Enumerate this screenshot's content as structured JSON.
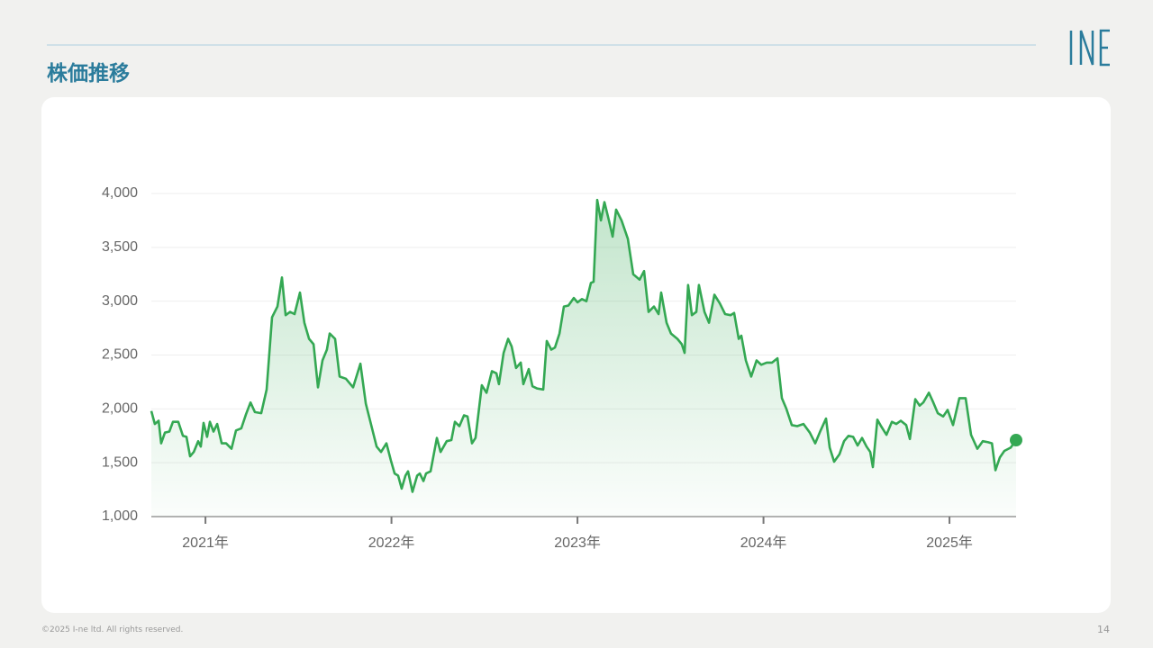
{
  "header": {
    "title": "株価推移"
  },
  "chart_data": {
    "type": "line",
    "color": "#34a853",
    "grid": true,
    "xlim": [
      2020.709,
      2025.358
    ],
    "xticks": [
      {
        "value": 2021,
        "label": "2021年"
      },
      {
        "value": 2022,
        "label": "2022年"
      },
      {
        "value": 2023,
        "label": "2023年"
      },
      {
        "value": 2024,
        "label": "2024年"
      },
      {
        "value": 2025,
        "label": "2025年"
      }
    ],
    "ylim": [
      1000,
      4000
    ],
    "yticks": [
      {
        "value": 1000,
        "label": "1,000"
      },
      {
        "value": 1500,
        "label": "1,500"
      },
      {
        "value": 2000,
        "label": "2,000"
      },
      {
        "value": 2500,
        "label": "2,500"
      },
      {
        "value": 3000,
        "label": "3,000"
      },
      {
        "value": 3500,
        "label": "3,500"
      },
      {
        "value": 4000,
        "label": "4,000"
      }
    ],
    "x": [
      2020.709,
      2020.728,
      2020.748,
      2020.762,
      2020.782,
      2020.806,
      2020.825,
      2020.854,
      2020.879,
      2020.898,
      2020.917,
      2020.937,
      2020.961,
      2020.975,
      2020.99,
      2021.009,
      2021.024,
      2021.043,
      2021.063,
      2021.087,
      2021.111,
      2021.14,
      2021.164,
      2021.193,
      2021.218,
      2021.242,
      2021.266,
      2021.3,
      2021.329,
      2021.358,
      2021.387,
      2021.411,
      2021.431,
      2021.455,
      2021.479,
      2021.508,
      2021.532,
      2021.557,
      2021.581,
      2021.605,
      2021.629,
      2021.653,
      2021.668,
      2021.697,
      2021.721,
      2021.755,
      2021.794,
      2021.833,
      2021.862,
      2021.891,
      2021.92,
      2021.944,
      2021.973,
      2021.997,
      2022.017,
      2022.036,
      2022.055,
      2022.075,
      2022.089,
      2022.113,
      2022.138,
      2022.152,
      2022.172,
      2022.186,
      2022.21,
      2022.244,
      2022.264,
      2022.297,
      2022.322,
      2022.341,
      2022.365,
      2022.39,
      2022.409,
      2022.433,
      2022.452,
      2022.486,
      2022.511,
      2022.54,
      2022.564,
      2022.578,
      2022.603,
      2022.627,
      2022.646,
      2022.67,
      2022.695,
      2022.709,
      2022.738,
      2022.758,
      2022.782,
      2022.816,
      2022.835,
      2022.859,
      2022.879,
      2022.903,
      2022.927,
      2022.951,
      2022.98,
      2023.0,
      2023.024,
      2023.048,
      2023.072,
      2023.087,
      2023.106,
      2023.126,
      2023.145,
      2023.169,
      2023.189,
      2023.208,
      2023.237,
      2023.271,
      2023.3,
      2023.334,
      2023.358,
      2023.382,
      2023.411,
      2023.436,
      2023.45,
      2023.479,
      2023.503,
      2023.537,
      2023.561,
      2023.576,
      2023.595,
      2023.615,
      2023.639,
      2023.653,
      2023.683,
      2023.707,
      2023.736,
      2023.765,
      2023.794,
      2023.823,
      2023.842,
      2023.867,
      2023.881,
      2023.905,
      2023.934,
      2023.963,
      2023.988,
      2024.017,
      2024.046,
      2024.075,
      2024.099,
      2024.123,
      2024.152,
      2024.181,
      2024.215,
      2024.249,
      2024.278,
      2024.307,
      2024.336,
      2024.356,
      2024.38,
      2024.409,
      2024.433,
      2024.457,
      2024.482,
      2024.506,
      2024.53,
      2024.554,
      2024.574,
      2024.588,
      2024.612,
      2024.632,
      2024.661,
      2024.69,
      2024.714,
      2024.738,
      2024.767,
      2024.787,
      2024.816,
      2024.84,
      2024.859,
      2024.889,
      2024.913,
      2024.937,
      2024.966,
      2024.99,
      2025.019,
      2025.053,
      2025.087,
      2025.116,
      2025.15,
      2025.179,
      2025.208,
      2025.228,
      2025.247,
      2025.271,
      2025.295,
      2025.329,
      2025.358
    ],
    "values": [
      1980,
      1860,
      1890,
      1680,
      1780,
      1790,
      1880,
      1880,
      1750,
      1740,
      1560,
      1600,
      1700,
      1650,
      1870,
      1740,
      1880,
      1790,
      1860,
      1680,
      1680,
      1630,
      1800,
      1820,
      1950,
      2060,
      1970,
      1960,
      2180,
      2850,
      2950,
      3220,
      2870,
      2900,
      2880,
      3080,
      2800,
      2650,
      2600,
      2200,
      2450,
      2550,
      2700,
      2650,
      2300,
      2280,
      2200,
      2420,
      2050,
      1850,
      1650,
      1600,
      1680,
      1520,
      1400,
      1380,
      1260,
      1380,
      1420,
      1230,
      1380,
      1400,
      1330,
      1400,
      1420,
      1730,
      1600,
      1700,
      1710,
      1880,
      1840,
      1940,
      1930,
      1680,
      1730,
      2220,
      2150,
      2350,
      2330,
      2230,
      2520,
      2650,
      2580,
      2380,
      2430,
      2230,
      2370,
      2210,
      2190,
      2180,
      2630,
      2550,
      2570,
      2700,
      2950,
      2960,
      3030,
      2990,
      3020,
      3000,
      3170,
      3180,
      3940,
      3750,
      3920,
      3750,
      3600,
      3850,
      3750,
      3580,
      3250,
      3200,
      3280,
      2900,
      2950,
      2880,
      3080,
      2800,
      2700,
      2650,
      2600,
      2520,
      3150,
      2870,
      2900,
      3150,
      2900,
      2800,
      3060,
      2980,
      2880,
      2870,
      2890,
      2650,
      2680,
      2450,
      2300,
      2450,
      2410,
      2430,
      2430,
      2470,
      2100,
      2000,
      1850,
      1840,
      1860,
      1780,
      1680,
      1800,
      1910,
      1640,
      1510,
      1580,
      1700,
      1750,
      1740,
      1660,
      1730,
      1650,
      1600,
      1460,
      1900,
      1840,
      1760,
      1880,
      1860,
      1890,
      1850,
      1720,
      2090,
      2030,
      2060,
      2150,
      2060,
      1960,
      1930,
      1990,
      1850,
      2100,
      2100,
      1760,
      1630,
      1700,
      1690,
      1680,
      1430,
      1550,
      1610,
      1640,
      1710
    ]
  },
  "footer": {
    "copyright": "©2025 I-ne ltd. All rights reserved.",
    "page": "14"
  }
}
